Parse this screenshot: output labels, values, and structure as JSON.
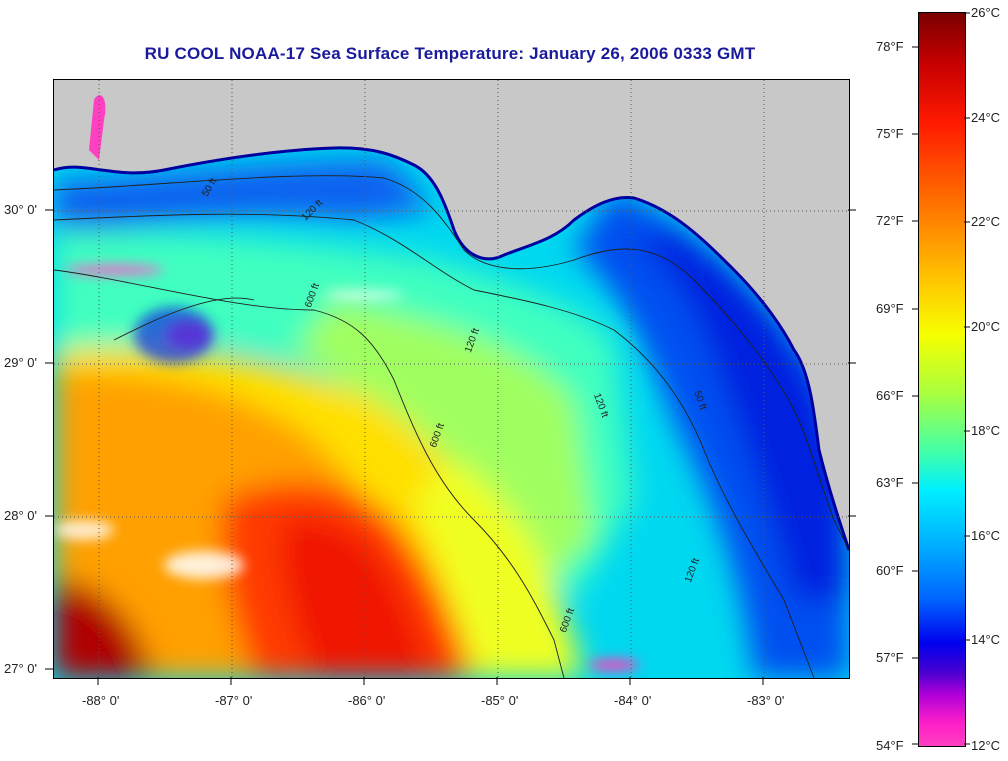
{
  "title": "RU COOL  NOAA-17  Sea Surface Temperature:  January 26, 2006 0333 GMT",
  "map": {
    "lon_labels": [
      "-88° 0'",
      "-87° 0'",
      "-86° 0'",
      "-85° 0'",
      "-84° 0'",
      "-83° 0'"
    ],
    "lat_labels": [
      "30° 0'",
      "29° 0'",
      "28° 0'",
      "27° 0'"
    ],
    "contour_labels": [
      "50 ft",
      "120 ft",
      "600 ft",
      "120 ft",
      "600 ft",
      "50 ft",
      "120 ft",
      "600 ft",
      "120 ft"
    ]
  },
  "colorbar": {
    "celsius": [
      "26°C",
      "24°C",
      "22°C",
      "20°C",
      "18°C",
      "16°C",
      "14°C",
      "12°C"
    ],
    "fahrenheit": [
      "78°F",
      "75°F",
      "72°F",
      "69°F",
      "66°F",
      "63°F",
      "60°F",
      "57°F",
      "54°F"
    ]
  },
  "colors": {
    "title": "#1a1a9c",
    "land": "#c8c8c8",
    "warm": "#d40000",
    "cool": "#0020e0",
    "cloud": "#ff40c0"
  }
}
